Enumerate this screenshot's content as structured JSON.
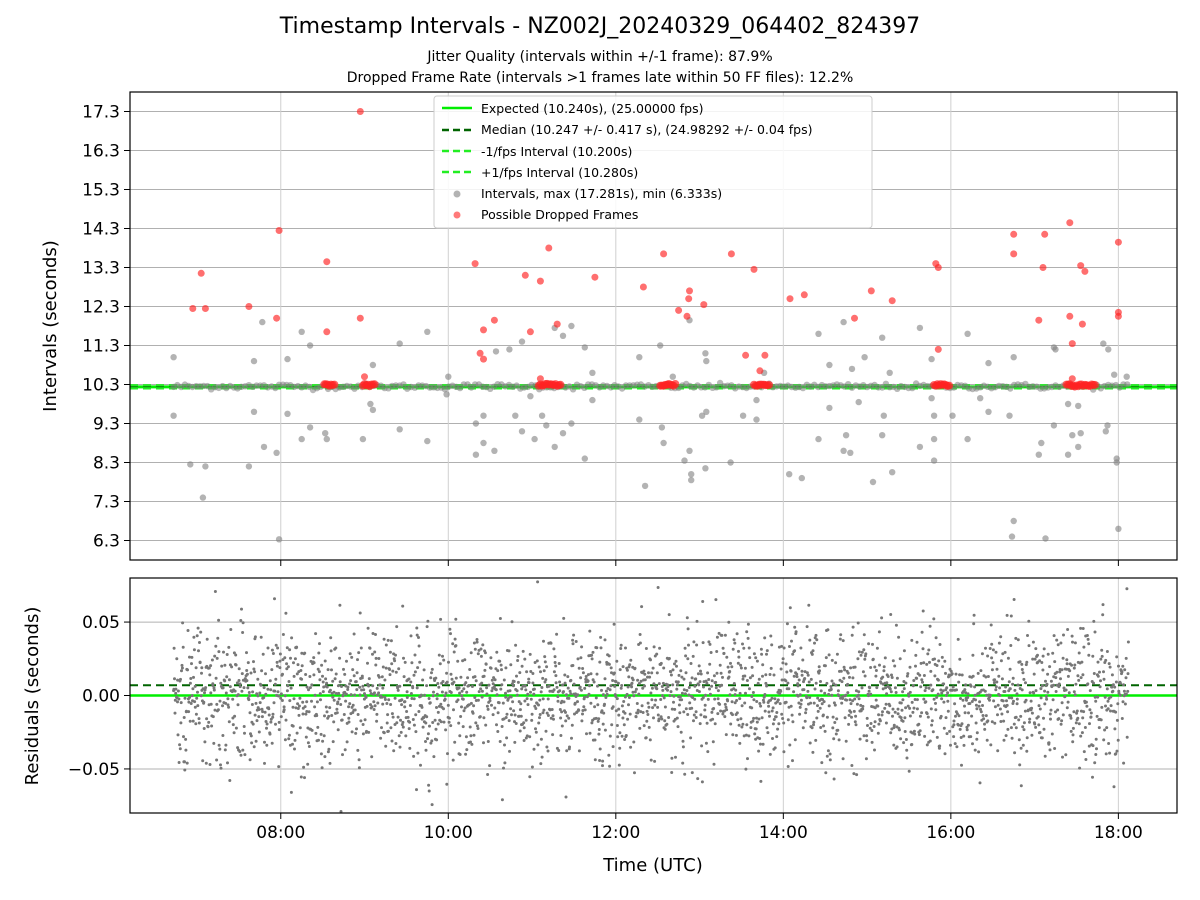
{
  "chart_data": {
    "title": "Timestamp Intervals - NZ002J_20240329_064402_824397",
    "subtitle_lines": [
      "Jitter Quality (intervals within +/-1 frame): 87.9%",
      "Dropped Frame Rate (intervals >1 frames late within 50 FF files): 12.2%"
    ],
    "xlabel": "Time (UTC)",
    "x_ticks": [
      "08:00",
      "10:00",
      "12:00",
      "14:00",
      "16:00",
      "18:00"
    ],
    "x_range_hours": [
      6.2,
      18.7
    ],
    "grid": true,
    "panels": [
      {
        "name": "intervals",
        "type": "scatter",
        "ylabel": "Intervals (seconds)",
        "ylim": [
          5.8,
          17.8
        ],
        "y_ticks": [
          "6.3",
          "7.3",
          "8.3",
          "9.3",
          "10.3",
          "11.3",
          "12.3",
          "13.3",
          "14.3",
          "15.3",
          "16.3",
          "17.3"
        ],
        "legend_position": "top-center",
        "lines": [
          {
            "label": "Expected (10.240s), (25.00000 fps)",
            "y": 10.24,
            "style": "solid",
            "color": "#00ee00"
          },
          {
            "label": "Median (10.247 +/- 0.417 s), (24.98292 +/- 0.04 fps)",
            "y": 10.247,
            "style": "dashed",
            "color": "#006400"
          },
          {
            "label": "-1/fps Interval (10.200s)",
            "y": 10.2,
            "style": "dashed",
            "color": "#22ee22"
          },
          {
            "label": "+1/fps Interval (10.280s)",
            "y": 10.28,
            "style": "dashed",
            "color": "#22ee22"
          }
        ],
        "scatter_series": [
          {
            "label": "Intervals, max (17.281s), min (6.333s)",
            "color": "#808080",
            "points": [
              [
                6.72,
                11.0
              ],
              [
                6.72,
                9.5
              ],
              [
                6.92,
                8.25
              ],
              [
                7.07,
                7.4
              ],
              [
                7.1,
                8.2
              ],
              [
                7.62,
                8.2
              ],
              [
                7.68,
                10.9
              ],
              [
                7.68,
                9.6
              ],
              [
                7.78,
                11.9
              ],
              [
                7.8,
                8.7
              ],
              [
                7.95,
                8.55
              ],
              [
                7.98,
                6.33
              ],
              [
                8.08,
                10.95
              ],
              [
                8.08,
                9.55
              ],
              [
                8.25,
                11.65
              ],
              [
                8.25,
                8.9
              ],
              [
                8.35,
                11.3
              ],
              [
                8.35,
                9.2
              ],
              [
                8.53,
                9.05
              ],
              [
                8.55,
                8.9
              ],
              [
                8.98,
                8.9
              ],
              [
                9.07,
                9.8
              ],
              [
                9.1,
                9.65
              ],
              [
                9.1,
                10.8
              ],
              [
                9.42,
                11.35
              ],
              [
                9.42,
                9.15
              ],
              [
                9.75,
                11.65
              ],
              [
                9.75,
                8.85
              ],
              [
                9.98,
                10.05
              ],
              [
                10.0,
                10.5
              ],
              [
                10.33,
                9.3
              ],
              [
                10.33,
                8.5
              ],
              [
                10.42,
                8.8
              ],
              [
                10.42,
                9.5
              ],
              [
                10.55,
                8.6
              ],
              [
                10.57,
                11.15
              ],
              [
                10.73,
                11.2
              ],
              [
                10.8,
                9.5
              ],
              [
                10.88,
                11.4
              ],
              [
                10.88,
                9.1
              ],
              [
                10.98,
                10.0
              ],
              [
                11.03,
                8.9
              ],
              [
                11.12,
                9.5
              ],
              [
                11.17,
                9.25
              ],
              [
                11.27,
                11.75
              ],
              [
                11.27,
                8.7
              ],
              [
                11.37,
                11.55
              ],
              [
                11.37,
                9.05
              ],
              [
                11.47,
                11.8
              ],
              [
                11.47,
                9.3
              ],
              [
                11.63,
                11.25
              ],
              [
                11.63,
                8.4
              ],
              [
                11.72,
                9.9
              ],
              [
                11.72,
                10.6
              ],
              [
                12.28,
                11.0
              ],
              [
                12.28,
                9.4
              ],
              [
                12.35,
                7.7
              ],
              [
                12.53,
                11.3
              ],
              [
                12.55,
                9.2
              ],
              [
                12.57,
                8.8
              ],
              [
                12.68,
                10.5
              ],
              [
                12.82,
                8.35
              ],
              [
                12.88,
                11.95
              ],
              [
                12.88,
                8.6
              ],
              [
                12.9,
                7.85
              ],
              [
                12.9,
                8.0
              ],
              [
                13.03,
                9.5
              ],
              [
                13.07,
                11.1
              ],
              [
                13.07,
                8.15
              ],
              [
                13.08,
                9.6
              ],
              [
                13.08,
                10.9
              ],
              [
                13.37,
                8.3
              ],
              [
                13.52,
                9.5
              ],
              [
                13.68,
                9.9
              ],
              [
                13.68,
                9.4
              ],
              [
                13.77,
                10.6
              ],
              [
                14.07,
                8.0
              ],
              [
                14.22,
                7.9
              ],
              [
                14.42,
                8.9
              ],
              [
                14.42,
                11.6
              ],
              [
                14.55,
                9.7
              ],
              [
                14.55,
                10.8
              ],
              [
                14.72,
                11.9
              ],
              [
                14.72,
                8.6
              ],
              [
                14.75,
                9.0
              ],
              [
                14.8,
                8.55
              ],
              [
                14.82,
                10.7
              ],
              [
                14.9,
                9.85
              ],
              [
                14.97,
                11.0
              ],
              [
                15.07,
                7.8
              ],
              [
                15.18,
                11.5
              ],
              [
                15.18,
                9.0
              ],
              [
                15.2,
                9.5
              ],
              [
                15.27,
                10.6
              ],
              [
                15.3,
                8.05
              ],
              [
                15.63,
                11.75
              ],
              [
                15.63,
                8.7
              ],
              [
                15.77,
                9.95
              ],
              [
                15.77,
                10.95
              ],
              [
                15.8,
                8.9
              ],
              [
                15.8,
                8.35
              ],
              [
                15.8,
                9.5
              ],
              [
                16.02,
                9.5
              ],
              [
                16.2,
                11.6
              ],
              [
                16.2,
                8.9
              ],
              [
                16.35,
                9.95
              ],
              [
                16.45,
                10.85
              ],
              [
                16.45,
                9.6
              ],
              [
                16.7,
                9.5
              ],
              [
                16.75,
                11.0
              ],
              [
                16.75,
                6.8
              ],
              [
                16.73,
                6.4
              ],
              [
                17.05,
                8.5
              ],
              [
                17.08,
                8.8
              ],
              [
                17.13,
                6.35
              ],
              [
                17.23,
                11.25
              ],
              [
                17.23,
                9.25
              ],
              [
                17.25,
                11.2
              ],
              [
                17.4,
                9.8
              ],
              [
                17.4,
                8.5
              ],
              [
                17.45,
                9.0
              ],
              [
                17.52,
                9.75
              ],
              [
                17.52,
                8.7
              ],
              [
                17.55,
                9.05
              ],
              [
                17.82,
                11.35
              ],
              [
                17.85,
                9.1
              ],
              [
                17.87,
                9.25
              ],
              [
                17.88,
                11.2
              ],
              [
                17.95,
                10.55
              ],
              [
                17.98,
                8.4
              ],
              [
                17.98,
                8.3
              ],
              [
                18.0,
                6.6
              ],
              [
                18.1,
                10.5
              ]
            ]
          },
          {
            "label": "Possible Dropped Frames",
            "color": "#ff2222",
            "points": [
              [
                6.95,
                12.25
              ],
              [
                7.05,
                13.15
              ],
              [
                7.1,
                12.25
              ],
              [
                7.62,
                12.3
              ],
              [
                7.95,
                12.0
              ],
              [
                7.98,
                14.25
              ],
              [
                8.55,
                13.45
              ],
              [
                8.55,
                11.65
              ],
              [
                8.95,
                17.3
              ],
              [
                8.95,
                12.0
              ],
              [
                9.0,
                10.5
              ],
              [
                10.32,
                13.4
              ],
              [
                10.38,
                11.1
              ],
              [
                10.42,
                11.7
              ],
              [
                10.42,
                10.95
              ],
              [
                10.55,
                11.95
              ],
              [
                10.92,
                13.1
              ],
              [
                10.98,
                11.65
              ],
              [
                11.1,
                12.95
              ],
              [
                11.2,
                13.8
              ],
              [
                11.1,
                10.45
              ],
              [
                11.3,
                11.85
              ],
              [
                11.75,
                13.05
              ],
              [
                12.33,
                12.8
              ],
              [
                12.57,
                13.65
              ],
              [
                12.75,
                12.2
              ],
              [
                12.85,
                12.05
              ],
              [
                12.87,
                12.5
              ],
              [
                12.88,
                12.7
              ],
              [
                13.05,
                12.35
              ],
              [
                13.38,
                13.65
              ],
              [
                13.55,
                11.05
              ],
              [
                13.65,
                13.25
              ],
              [
                13.72,
                10.65
              ],
              [
                13.78,
                11.05
              ],
              [
                14.08,
                12.5
              ],
              [
                14.25,
                12.6
              ],
              [
                14.85,
                12.0
              ],
              [
                15.05,
                12.7
              ],
              [
                15.3,
                12.45
              ],
              [
                15.82,
                13.4
              ],
              [
                15.85,
                13.3
              ],
              [
                15.85,
                11.2
              ],
              [
                16.75,
                14.15
              ],
              [
                16.75,
                13.65
              ],
              [
                17.05,
                11.95
              ],
              [
                17.1,
                13.3
              ],
              [
                17.12,
                14.15
              ],
              [
                17.42,
                14.45
              ],
              [
                17.42,
                12.05
              ],
              [
                17.45,
                11.35
              ],
              [
                17.55,
                13.35
              ],
              [
                17.57,
                11.85
              ],
              [
                17.6,
                13.2
              ],
              [
                17.45,
                10.45
              ],
              [
                18.0,
                13.95
              ],
              [
                18.0,
                12.15
              ],
              [
                18.0,
                12.05
              ]
            ]
          }
        ],
        "dense_clusters_at_10_3": [
          [
            8.52,
            8.64
          ],
          [
            8.98,
            9.12
          ],
          [
            11.08,
            11.35
          ],
          [
            12.53,
            12.72
          ],
          [
            13.65,
            13.83
          ],
          [
            15.8,
            15.98
          ],
          [
            17.38,
            17.72
          ]
        ]
      },
      {
        "name": "residuals",
        "type": "scatter",
        "ylabel": "Residuals (seconds)",
        "ylim": [
          -0.08,
          0.08
        ],
        "y_ticks": [
          "−0.05",
          "0.00",
          "0.05"
        ],
        "lines": [
          {
            "y": 0.0,
            "style": "solid",
            "color": "#00ee00"
          },
          {
            "y": 0.007,
            "style": "dashed",
            "color": "#006400"
          }
        ],
        "scatter_color": "#777777",
        "x_range_hours": [
          6.72,
          18.12
        ],
        "spread_std": 0.022
      }
    ]
  }
}
